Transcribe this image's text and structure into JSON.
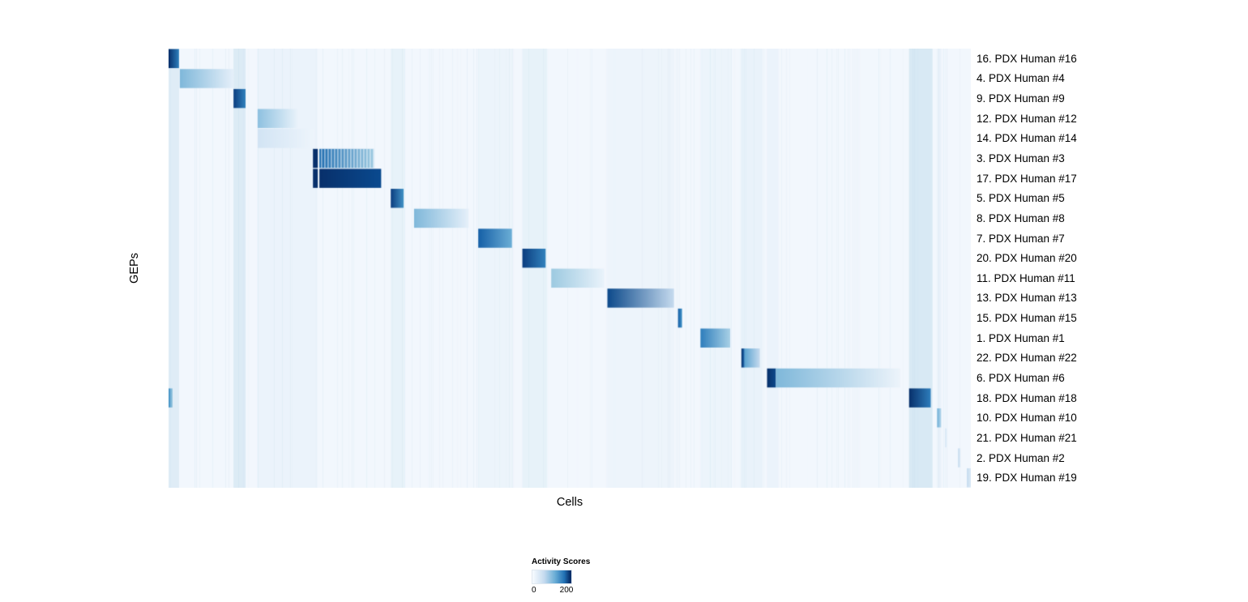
{
  "figure": {
    "y_axis_label": "GEPs",
    "x_axis_label": "Cells",
    "legend": {
      "title": "Activity Scores",
      "tick_min": "0",
      "tick_max": "200"
    }
  },
  "chart_data": {
    "type": "heatmap",
    "title": "",
    "xlabel": "Cells",
    "ylabel": "GEPs",
    "colormap": "Blues",
    "legend_title": "Activity Scores",
    "color_scale": {
      "min": 0,
      "max": 200,
      "min_color": "#f7fbff",
      "max_color": "#08306b"
    },
    "background_color": "#f2f7fd",
    "noise_color": "#9dcae1",
    "rows": [
      {
        "label": "16. PDX Human #16",
        "blocks": [
          {
            "x0": 0.0,
            "x1": 0.013,
            "c0": "#08306b",
            "c1": "#2e7ebc"
          }
        ]
      },
      {
        "label": "4. PDX Human #4",
        "blocks": [
          {
            "x0": 0.014,
            "x1": 0.081,
            "c0": "#7fb8da",
            "c1": "#e6f0fa"
          }
        ]
      },
      {
        "label": "9. PDX Human #9",
        "blocks": [
          {
            "x0": 0.081,
            "x1": 0.096,
            "c0": "#0b3d7f",
            "c1": "#3282bd"
          }
        ]
      },
      {
        "label": "12. PDX Human #12",
        "blocks": [
          {
            "x0": 0.111,
            "x1": 0.161,
            "c0": "#8ec1e0",
            "c1": "#eaf3fb"
          }
        ]
      },
      {
        "label": "14. PDX Human #14",
        "blocks": [
          {
            "x0": 0.111,
            "x1": 0.182,
            "c0": "#d2e4f4",
            "c1": "#eef5fc"
          }
        ]
      },
      {
        "label": "3. PDX Human #3",
        "blocks": [
          {
            "x0": 0.18,
            "x1": 0.186,
            "c0": "#08306b",
            "c1": "#08306b"
          },
          {
            "x0": 0.188,
            "x1": 0.256,
            "c0": "#1f6db0",
            "c1": "#9dcae1",
            "striped": true
          }
        ]
      },
      {
        "label": "17. PDX Human #17",
        "blocks": [
          {
            "x0": 0.18,
            "x1": 0.186,
            "c0": "#08306b",
            "c1": "#08306b"
          },
          {
            "x0": 0.188,
            "x1": 0.265,
            "c0": "#08306b",
            "c1": "#0a4a8f"
          }
        ]
      },
      {
        "label": "5. PDX Human #5",
        "blocks": [
          {
            "x0": 0.277,
            "x1": 0.293,
            "c0": "#0b3d7f",
            "c1": "#4292c6"
          }
        ]
      },
      {
        "label": "8. PDX Human #8",
        "blocks": [
          {
            "x0": 0.306,
            "x1": 0.374,
            "c0": "#7fb8da",
            "c1": "#e6f0fa"
          }
        ]
      },
      {
        "label": "7. PDX Human #7",
        "blocks": [
          {
            "x0": 0.386,
            "x1": 0.428,
            "c0": "#1660a7",
            "c1": "#6baed6"
          }
        ]
      },
      {
        "label": "20. PDX Human #20",
        "blocks": [
          {
            "x0": 0.441,
            "x1": 0.47,
            "c0": "#0b3d7f",
            "c1": "#3282bd"
          }
        ]
      },
      {
        "label": "11. PDX Human #11",
        "blocks": [
          {
            "x0": 0.477,
            "x1": 0.543,
            "c0": "#9dcae1",
            "c1": "#eaf3fb"
          }
        ]
      },
      {
        "label": "13. PDX Human #13",
        "blocks": [
          {
            "x0": 0.547,
            "x1": 0.63,
            "c0": "#0d4a8b",
            "c1": "#c6dbef"
          }
        ]
      },
      {
        "label": "15. PDX Human #15",
        "blocks": [
          {
            "x0": 0.635,
            "x1": 0.64,
            "c0": "#1660a7",
            "c1": "#4292c6"
          }
        ]
      },
      {
        "label": "1. PDX Human #1",
        "blocks": [
          {
            "x0": 0.663,
            "x1": 0.7,
            "c0": "#2e7ebc",
            "c1": "#a8d0e6"
          }
        ]
      },
      {
        "label": "22. PDX Human #22",
        "blocks": [
          {
            "x0": 0.714,
            "x1": 0.718,
            "c0": "#08306b",
            "c1": "#2171b5"
          },
          {
            "x0": 0.718,
            "x1": 0.737,
            "c0": "#5ba3d0",
            "c1": "#c6dbef"
          }
        ]
      },
      {
        "label": "6. PDX Human #6",
        "blocks": [
          {
            "x0": 0.746,
            "x1": 0.757,
            "c0": "#08306b",
            "c1": "#0d4a8b"
          },
          {
            "x0": 0.757,
            "x1": 0.912,
            "c0": "#7fb8da",
            "c1": "#edf4fb"
          }
        ]
      },
      {
        "label": "18. PDX Human #18",
        "blocks": [
          {
            "x0": 0.0,
            "x1": 0.005,
            "c0": "#4292c6",
            "c1": "#9dcae1"
          },
          {
            "x0": 0.923,
            "x1": 0.95,
            "c0": "#08306b",
            "c1": "#2e7ebc"
          }
        ]
      },
      {
        "label": "10. PDX Human #10",
        "blocks": [
          {
            "x0": 0.958,
            "x1": 0.963,
            "c0": "#6baed6",
            "c1": "#b8d8ec"
          }
        ]
      },
      {
        "label": "21. PDX Human #21",
        "blocks": [
          {
            "x0": 0.968,
            "x1": 0.97,
            "c0": "#d2e4f4",
            "c1": "#e6f0fa"
          }
        ]
      },
      {
        "label": "2. PDX Human #2",
        "blocks": [
          {
            "x0": 0.984,
            "x1": 0.987,
            "c0": "#c6dbef",
            "c1": "#dcebf7"
          }
        ]
      },
      {
        "label": "19. PDX Human #19",
        "blocks": [
          {
            "x0": 0.995,
            "x1": 1.0,
            "c0": "#c6dbef",
            "c1": "#dcebf7"
          }
        ]
      }
    ],
    "background_bands": [
      {
        "x0": 0.0,
        "x1": 0.013,
        "color": "#9dcae1",
        "alpha": 0.22
      },
      {
        "x0": 0.081,
        "x1": 0.096,
        "color": "#9dcae1",
        "alpha": 0.26
      },
      {
        "x0": 0.111,
        "x1": 0.185,
        "color": "#9dcae1",
        "alpha": 0.08
      },
      {
        "x0": 0.277,
        "x1": 0.295,
        "color": "#9dcae1",
        "alpha": 0.12
      },
      {
        "x0": 0.386,
        "x1": 0.43,
        "color": "#9dcae1",
        "alpha": 0.06
      },
      {
        "x0": 0.441,
        "x1": 0.472,
        "color": "#9dcae1",
        "alpha": 0.12
      },
      {
        "x0": 0.547,
        "x1": 0.63,
        "color": "#9dcae1",
        "alpha": 0.05
      },
      {
        "x0": 0.663,
        "x1": 0.702,
        "color": "#9dcae1",
        "alpha": 0.06
      },
      {
        "x0": 0.714,
        "x1": 0.74,
        "color": "#9dcae1",
        "alpha": 0.1
      },
      {
        "x0": 0.746,
        "x1": 0.76,
        "color": "#9dcae1",
        "alpha": 0.08
      },
      {
        "x0": 0.923,
        "x1": 0.952,
        "color": "#9dcae1",
        "alpha": 0.3
      },
      {
        "x0": 0.958,
        "x1": 0.963,
        "color": "#9dcae1",
        "alpha": 0.1
      }
    ]
  }
}
